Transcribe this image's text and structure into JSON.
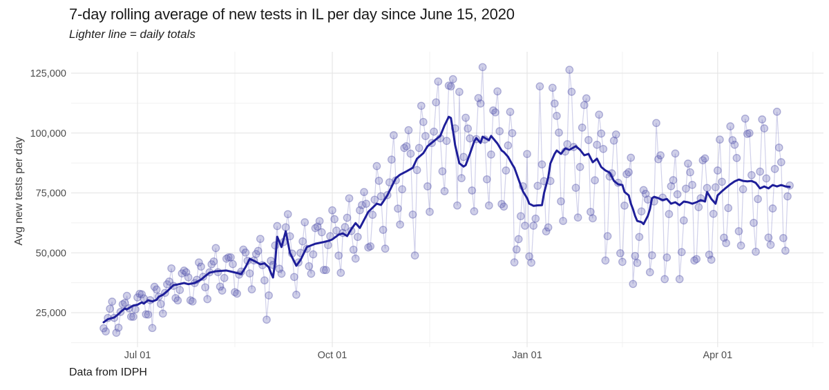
{
  "header": {
    "title": "7-day rolling average of new tests in IL per day since June 15, 2020",
    "subtitle": "Lighter line = daily totals"
  },
  "caption": "Data from IDPH",
  "y_axis": {
    "title": "Avg new tests per day",
    "ticks": [
      {
        "label": "125,000",
        "value": 125000
      },
      {
        "label": "100,000",
        "value": 100000
      },
      {
        "label": "75,000",
        "value": 75000
      },
      {
        "label": "50,000",
        "value": 50000
      },
      {
        "label": "25,000",
        "value": 25000
      }
    ],
    "minor_values": [
      112500,
      87500,
      62500,
      37500,
      12500
    ]
  },
  "x_axis": {
    "ticks": [
      {
        "label": "Jul 01",
        "day": 16
      },
      {
        "label": "Oct 01",
        "day": 108
      },
      {
        "label": "Jan 01",
        "day": 200
      },
      {
        "label": "Apr 01",
        "day": 290
      }
    ],
    "minor_days": [
      62,
      154,
      245,
      335
    ]
  },
  "colors": {
    "avg_line": "#1e1e99",
    "daily_line": "rgba(100,100,185,0.30)",
    "daily_point_fill": "rgba(105,105,185,0.32)",
    "daily_point_stroke": "rgba(75,75,165,0.40)",
    "grid_major": "#e2e2e2",
    "grid_minor": "#f1f1f1",
    "tick_text": "#4d4d4d"
  },
  "chart_data": {
    "type": "line",
    "title": "7-day rolling average of new tests in IL per day since June 15, 2020",
    "subtitle": "Lighter line = daily totals",
    "caption": "Data from IDPH",
    "ylabel": "Avg new tests per day",
    "x_start_date": "2020-06-15",
    "x_end_day": 324,
    "ylim": [
      12500,
      130000
    ],
    "grid": "major+minor",
    "legend": "none",
    "series": [
      {
        "name": "7-day rolling average",
        "style": "bold_dark_line",
        "points_day_value": [
          [
            0,
            21000
          ],
          [
            2,
            22300
          ],
          [
            5,
            23000
          ],
          [
            7,
            24400
          ],
          [
            8,
            25300
          ],
          [
            10,
            26800
          ],
          [
            11,
            26400
          ],
          [
            14,
            28000
          ],
          [
            16,
            28300
          ],
          [
            18,
            29300
          ],
          [
            19,
            28800
          ],
          [
            21,
            30200
          ],
          [
            23,
            29700
          ],
          [
            25,
            30400
          ],
          [
            26,
            31600
          ],
          [
            28,
            32500
          ],
          [
            30,
            33900
          ],
          [
            33,
            36500
          ],
          [
            35,
            36800
          ],
          [
            38,
            37400
          ],
          [
            40,
            36900
          ],
          [
            43,
            37400
          ],
          [
            46,
            38800
          ],
          [
            48,
            40300
          ],
          [
            50,
            41700
          ],
          [
            53,
            42300
          ],
          [
            58,
            42600
          ],
          [
            61,
            42000
          ],
          [
            65,
            41100
          ],
          [
            67,
            44000
          ],
          [
            69,
            47500
          ],
          [
            72,
            46200
          ],
          [
            74,
            45200
          ],
          [
            76,
            45600
          ],
          [
            78,
            44000
          ],
          [
            79,
            41700
          ],
          [
            80,
            39700
          ],
          [
            81,
            46000
          ],
          [
            82,
            56700
          ],
          [
            84,
            52400
          ],
          [
            86,
            59000
          ],
          [
            88,
            50000
          ],
          [
            91,
            44600
          ],
          [
            93,
            47000
          ],
          [
            96,
            52400
          ],
          [
            100,
            53800
          ],
          [
            104,
            54500
          ],
          [
            107,
            55200
          ],
          [
            108,
            55600
          ],
          [
            111,
            57600
          ],
          [
            113,
            58100
          ],
          [
            115,
            57000
          ],
          [
            117,
            59900
          ],
          [
            119,
            62400
          ],
          [
            121,
            60400
          ],
          [
            125,
            67100
          ],
          [
            129,
            70500
          ],
          [
            131,
            70000
          ],
          [
            134,
            74000
          ],
          [
            138,
            81200
          ],
          [
            140,
            82600
          ],
          [
            143,
            84000
          ],
          [
            146,
            85500
          ],
          [
            148,
            89300
          ],
          [
            151,
            91600
          ],
          [
            153,
            94500
          ],
          [
            157,
            97400
          ],
          [
            159,
            98800
          ],
          [
            161,
            103200
          ],
          [
            163,
            106800
          ],
          [
            164,
            106300
          ],
          [
            165,
            101000
          ],
          [
            166,
            95000
          ],
          [
            168,
            87400
          ],
          [
            170,
            86000
          ],
          [
            171,
            86600
          ],
          [
            173,
            91300
          ],
          [
            175,
            96500
          ],
          [
            176,
            97900
          ],
          [
            178,
            95900
          ],
          [
            179,
            98500
          ],
          [
            182,
            97000
          ],
          [
            183,
            98800
          ],
          [
            186,
            95600
          ],
          [
            188,
            92700
          ],
          [
            189,
            92100
          ],
          [
            191,
            90100
          ],
          [
            193,
            86900
          ],
          [
            194,
            85500
          ],
          [
            196,
            80600
          ],
          [
            198,
            75700
          ],
          [
            200,
            72800
          ],
          [
            201,
            70500
          ],
          [
            203,
            69600
          ],
          [
            205,
            69800
          ],
          [
            207,
            69900
          ],
          [
            208,
            74900
          ],
          [
            210,
            81500
          ],
          [
            211,
            87300
          ],
          [
            213,
            91300
          ],
          [
            214,
            92700
          ],
          [
            216,
            91300
          ],
          [
            218,
            93600
          ],
          [
            220,
            93000
          ],
          [
            223,
            94500
          ],
          [
            225,
            93000
          ],
          [
            227,
            90700
          ],
          [
            229,
            91300
          ],
          [
            231,
            87800
          ],
          [
            233,
            89300
          ],
          [
            235,
            85800
          ],
          [
            237,
            84400
          ],
          [
            239,
            83500
          ],
          [
            241,
            80000
          ],
          [
            243,
            78600
          ],
          [
            245,
            78300
          ],
          [
            246,
            75400
          ],
          [
            248,
            74000
          ],
          [
            249,
            70500
          ],
          [
            250,
            68200
          ],
          [
            251,
            65400
          ],
          [
            252,
            63300
          ],
          [
            254,
            62800
          ],
          [
            255,
            62000
          ],
          [
            257,
            65400
          ],
          [
            258,
            68200
          ],
          [
            259,
            72800
          ],
          [
            260,
            73400
          ],
          [
            262,
            72800
          ],
          [
            264,
            72000
          ],
          [
            266,
            72500
          ],
          [
            268,
            70500
          ],
          [
            270,
            71100
          ],
          [
            272,
            69900
          ],
          [
            274,
            71400
          ],
          [
            276,
            71100
          ],
          [
            278,
            70500
          ],
          [
            280,
            71100
          ],
          [
            282,
            72000
          ],
          [
            284,
            71400
          ],
          [
            285,
            75400
          ],
          [
            287,
            72500
          ],
          [
            289,
            70500
          ],
          [
            290,
            74000
          ],
          [
            292,
            75700
          ],
          [
            294,
            77200
          ],
          [
            296,
            78600
          ],
          [
            298,
            79800
          ],
          [
            300,
            80600
          ],
          [
            302,
            80000
          ],
          [
            304,
            79800
          ],
          [
            306,
            80000
          ],
          [
            308,
            79200
          ],
          [
            310,
            76900
          ],
          [
            312,
            77700
          ],
          [
            314,
            76900
          ],
          [
            316,
            78300
          ],
          [
            318,
            77700
          ],
          [
            320,
            78300
          ],
          [
            322,
            77700
          ],
          [
            324,
            77500
          ]
        ]
      },
      {
        "name": "daily totals",
        "style": "light_points_and_thin_line",
        "model": {
          "note": "daily total = rolling average interpolated at day d, times weekday factor (Mon-first, linearly morphing start to end across the span), times jitter",
          "weekday_factors_start": [
            0.78,
            0.95,
            1.06,
            1.16,
            1.2,
            1.05,
            0.86
          ],
          "weekday_factors_end": [
            0.63,
            0.9,
            1.08,
            1.26,
            1.3,
            1.07,
            0.72
          ],
          "jitter": {
            "amp1": 0.05,
            "freq1": 2.4,
            "amp2": 0.04,
            "freq2": 0.9,
            "phase2": 1
          },
          "clamp": [
            16400,
            127600
          ]
        },
        "observed_outliers_day_value": [
          [
            0,
            18500
          ],
          [
            1,
            17200
          ],
          [
            4,
            29600
          ],
          [
            6,
            16600
          ],
          [
            23,
            18600
          ],
          [
            77,
            22100
          ],
          [
            78,
            32200
          ],
          [
            147,
            48900
          ],
          [
            158,
            121500
          ],
          [
            168,
            117200
          ],
          [
            177,
            114600
          ],
          [
            179,
            127500
          ],
          [
            194,
            46000
          ],
          [
            195,
            51400
          ],
          [
            197,
            65300
          ],
          [
            199,
            61300
          ],
          [
            201,
            48500
          ],
          [
            202,
            45900
          ],
          [
            203,
            61300
          ],
          [
            206,
            119500
          ],
          [
            212,
            118900
          ],
          [
            220,
            126400
          ],
          [
            227,
            111700
          ],
          [
            237,
            46800
          ],
          [
            244,
            49800
          ],
          [
            245,
            46200
          ],
          [
            250,
            37000
          ],
          [
            258,
            41900
          ],
          [
            261,
            104200
          ],
          [
            265,
            39000
          ],
          [
            272,
            39000
          ],
          [
            279,
            46800
          ],
          [
            286,
            49200
          ],
          [
            296,
            102800
          ],
          [
            303,
            106000
          ],
          [
            311,
            105700
          ],
          [
            318,
            108900
          ]
        ]
      }
    ]
  }
}
